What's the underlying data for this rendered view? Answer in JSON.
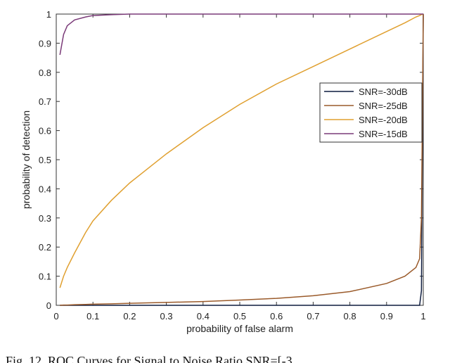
{
  "chart_data": {
    "type": "line",
    "xlabel": "probability of false alarm",
    "ylabel": "probability of detection",
    "caption": "Fig. 12. ROC Curves for Signal to Noise Ratio SNR=[-3",
    "x": [
      0.01,
      0.02,
      0.03,
      0.05,
      0.08,
      0.1,
      0.15,
      0.2,
      0.3,
      0.4,
      0.5,
      0.6,
      0.7,
      0.8,
      0.9,
      0.95,
      0.98,
      0.99,
      0.995,
      1
    ],
    "series": [
      {
        "name": "SNR=-30dB",
        "color": "#0d1b3e",
        "values": [
          0,
          0,
          0,
          0,
          0,
          0,
          0,
          0,
          0,
          0,
          0,
          0,
          0,
          0,
          0,
          0,
          0,
          0,
          0.05,
          1
        ]
      },
      {
        "name": "SNR=-25dB",
        "color": "#9a5a2a",
        "values": [
          0,
          0.001,
          0.001,
          0.002,
          0.003,
          0.004,
          0.005,
          0.007,
          0.01,
          0.013,
          0.018,
          0.024,
          0.033,
          0.047,
          0.075,
          0.1,
          0.13,
          0.16,
          0.3,
          1
        ]
      },
      {
        "name": "SNR=-20dB",
        "color": "#e0a030",
        "values": [
          0.06,
          0.1,
          0.13,
          0.18,
          0.25,
          0.29,
          0.36,
          0.42,
          0.52,
          0.61,
          0.69,
          0.76,
          0.82,
          0.88,
          0.94,
          0.97,
          0.99,
          0.995,
          0.998,
          1
        ]
      },
      {
        "name": "SNR=-15dB",
        "color": "#7a3a78",
        "values": [
          0.86,
          0.93,
          0.96,
          0.98,
          0.99,
          0.995,
          0.998,
          1,
          1,
          1,
          1,
          1,
          1,
          1,
          1,
          1,
          1,
          1,
          1,
          1
        ]
      }
    ],
    "xlim": [
      0,
      1
    ],
    "ylim": [
      0,
      1
    ],
    "xticks": [
      0,
      0.1,
      0.2,
      0.3,
      0.4,
      0.5,
      0.6,
      0.7,
      0.8,
      0.9,
      1
    ],
    "yticks": [
      0,
      0.1,
      0.2,
      0.3,
      0.4,
      0.5,
      0.6,
      0.7,
      0.8,
      0.9,
      1
    ],
    "legend": "upper right",
    "grid": false
  }
}
